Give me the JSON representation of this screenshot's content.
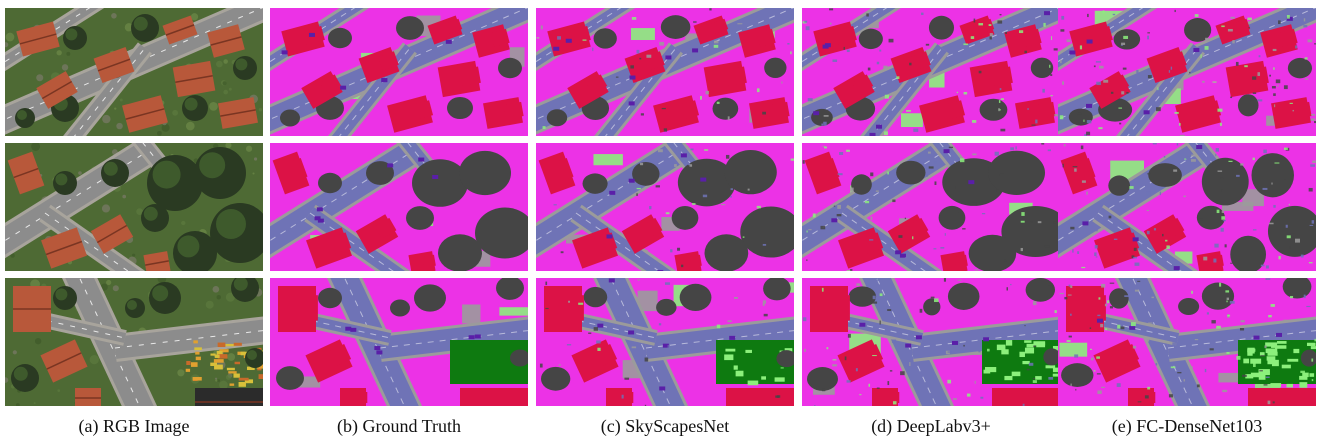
{
  "columns": [
    {
      "caption": "(a) RGB Image",
      "kind": "rgb"
    },
    {
      "caption": "(b) Ground Truth",
      "kind": "seg",
      "noise": 0
    },
    {
      "caption": "(c) SkyScapesNet",
      "kind": "seg",
      "noise": 1
    },
    {
      "caption": "(d) DeepLabv3+",
      "kind": "seg",
      "noise": 2
    },
    {
      "caption": "(e) FC-DenseNet103",
      "kind": "seg",
      "noise": 3
    }
  ],
  "rows": [
    "row-1",
    "row-2",
    "row-3"
  ],
  "palette": {
    "background": "#ec32e6",
    "road": "#6f73b6",
    "building": "#dc1246",
    "tree": "#454545",
    "lawn": "#8cf07c",
    "sidewalk": "#9b9b9b",
    "car": "#5a1fa8",
    "field": "#0e7a10",
    "marking": "#ffffff"
  },
  "rgb_palette": {
    "roof": "#b8583a",
    "road": "#8c8c8c",
    "grass": "#4e6a34",
    "tree": "#2a3a22",
    "pavement": "#a8a49c",
    "cars": "#d8c03a",
    "dark_roof": "#2b2b2b"
  }
}
